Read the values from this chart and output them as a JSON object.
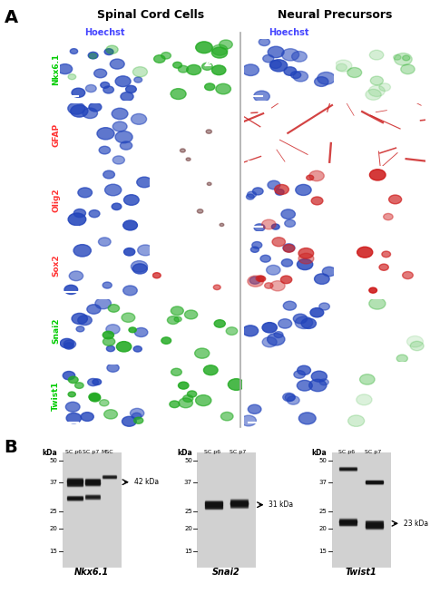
{
  "panel_A_label": "A",
  "panel_B_label": "B",
  "title_spinal": "Spinal Cord Cells",
  "title_neural": "Neural Precursors",
  "hoechst_label": "Hoechst",
  "row_labels": [
    "Nkx6.1",
    "GFAP",
    "Olig2",
    "Sox2",
    "Snai2",
    "Twist1"
  ],
  "row_label_colors": [
    "#00cc00",
    "#ff3333",
    "#ff3333",
    "#ff3333",
    "#00cc00",
    "#00cc00"
  ],
  "hoechst_color": "#4444ff",
  "wb_labels": [
    "Nkx6.1",
    "Snai2",
    "Twist1"
  ],
  "wb_annotations": [
    "42 kDa",
    "31 kDa",
    "23 kDa"
  ],
  "wb_col_headers_1": [
    "SC p6",
    "SC p7",
    "MSC"
  ],
  "wb_col_headers_23": [
    "SC p6",
    "SC p7"
  ],
  "bg_black": "#000000",
  "text_blue": "#4444ff",
  "text_green": "#00cc00",
  "text_red": "#ff4444",
  "separator_color": "#888888"
}
